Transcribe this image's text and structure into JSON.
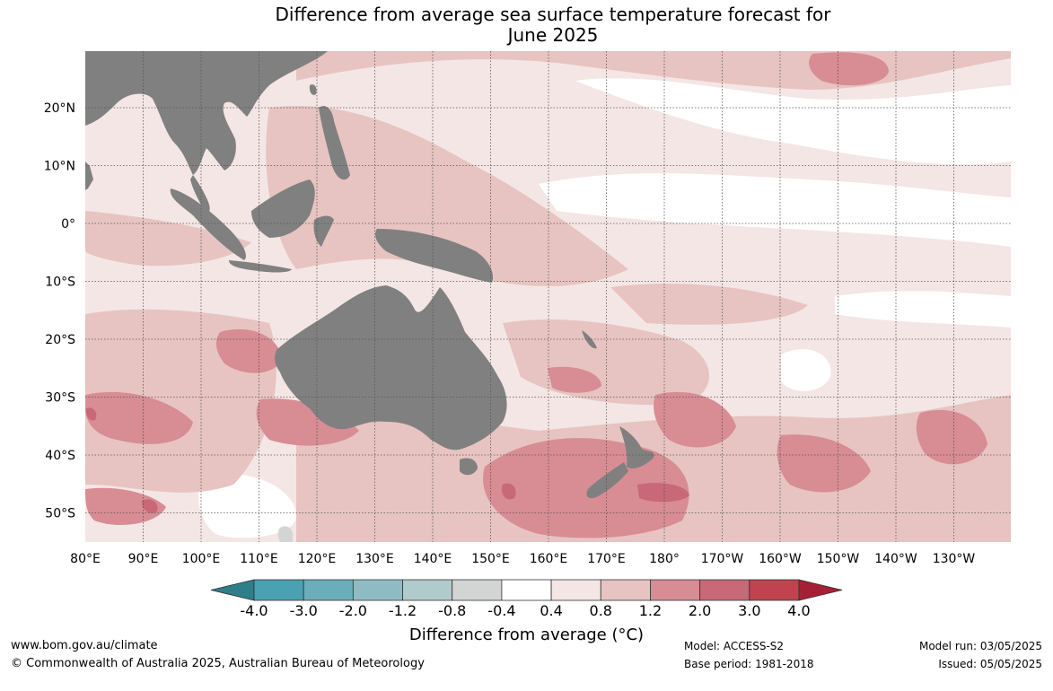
{
  "title": {
    "line1": "Difference from average sea surface temperature forecast for",
    "line2": "June 2025"
  },
  "map": {
    "longitude_labels": [
      "80°E",
      "90°E",
      "100°E",
      "110°E",
      "120°E",
      "130°E",
      "140°E",
      "150°E",
      "160°E",
      "170°E",
      "180°",
      "170°W",
      "160°W",
      "150°W",
      "140°W",
      "130°W"
    ],
    "latitude_labels": [
      "20°N",
      "10°N",
      "0°",
      "10°S",
      "20°S",
      "30°S",
      "40°S",
      "50°S"
    ],
    "land_color": "#808080",
    "gridlines": "dotted"
  },
  "colorbar": {
    "tick_labels": [
      "-4.0",
      "-3.0",
      "-2.0",
      "-1.2",
      "-0.8",
      "-0.4",
      "0.4",
      "0.8",
      "1.2",
      "2.0",
      "3.0",
      "4.0"
    ],
    "colors": [
      "#2f7f8a",
      "#4aa1b2",
      "#6aadbb",
      "#8fbcc4",
      "#b1cacb",
      "#d3d5d5",
      "#ffffff",
      "#f4e6e5",
      "#e7c4c1",
      "#d88c94",
      "#c86878",
      "#bf4450",
      "#a52035"
    ],
    "title": "Difference from average (°C)"
  },
  "footer": {
    "url": "www.bom.gov.au/climate",
    "copyright": "© Commonwealth of Australia 2025, Australian Bureau of Meteorology",
    "model": "Model: ACCESS-S2",
    "base_period": "Base period: 1981-2018",
    "model_run": "Model run: 03/05/2025",
    "issued": "Issued: 05/05/2025"
  }
}
